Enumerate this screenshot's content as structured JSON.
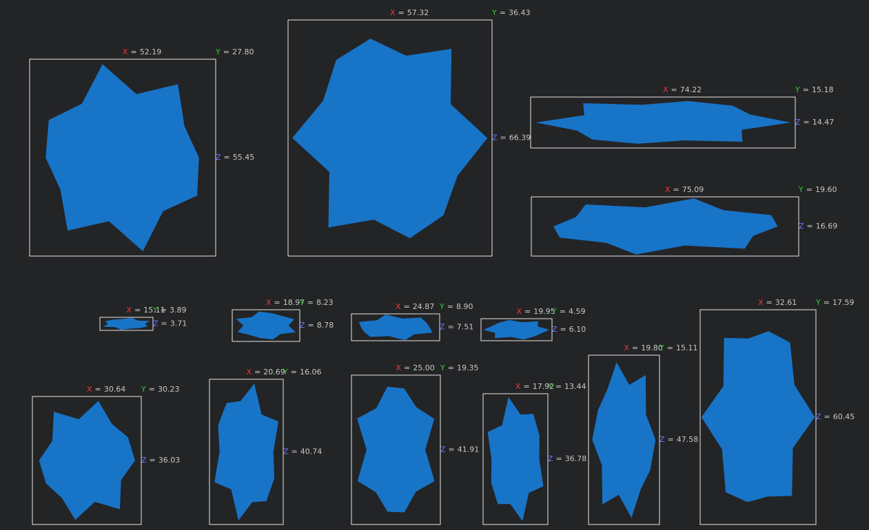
{
  "axis_letters": {
    "x": "X",
    "y": "Y",
    "z": "Z"
  },
  "separator": "=",
  "objects": [
    {
      "x": "52.19",
      "y": "27.80",
      "z": "55.45"
    },
    {
      "x": "57.32",
      "y": "36.43",
      "z": "66.39"
    },
    {
      "x": "74.22",
      "y": "15.18",
      "z": "14.47"
    },
    {
      "x": "75.09",
      "y": "19.60",
      "z": "16.69"
    },
    {
      "x": "15.11",
      "y": "3.89",
      "z": "3.71"
    },
    {
      "x": "18.97",
      "y": "8.23",
      "z": "8.78"
    },
    {
      "x": "24.87",
      "y": "8.90",
      "z": "7.51"
    },
    {
      "x": "19.95",
      "y": "4.59",
      "z": "6.10"
    },
    {
      "x": "32.61",
      "y": "17.59",
      "z": "60.45"
    },
    {
      "x": "30.64",
      "y": "30.23",
      "z": "36.03"
    },
    {
      "x": "20.69",
      "y": "16.06",
      "z": "40.74"
    },
    {
      "x": "25.00",
      "y": "19.35",
      "z": "41.91"
    },
    {
      "x": "17.92",
      "y": "13.44",
      "z": "36.78"
    },
    {
      "x": "19.80",
      "y": "15.11",
      "z": "47.58"
    }
  ]
}
